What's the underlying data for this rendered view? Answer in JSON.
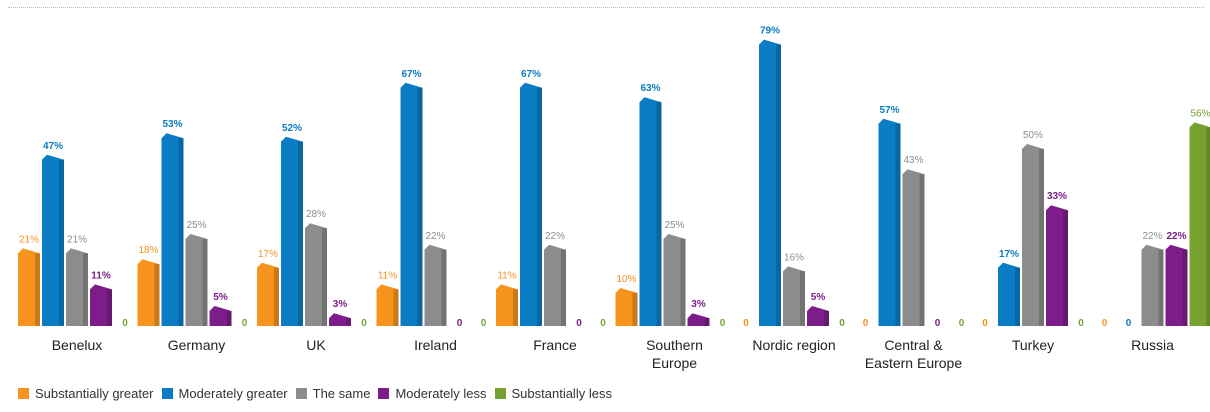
{
  "chart_data": {
    "type": "bar",
    "title": "",
    "xlabel": "",
    "ylabel": "",
    "ylim": [
      0,
      80
    ],
    "grid": false,
    "legend_position": "bottom-left",
    "categories": [
      [
        "Benelux"
      ],
      [
        "Germany"
      ],
      [
        "UK"
      ],
      [
        "Ireland"
      ],
      [
        "France"
      ],
      [
        "Southern",
        "Europe"
      ],
      [
        "Nordic region"
      ],
      [
        "Central &",
        "Eastern Europe"
      ],
      [
        "Turkey"
      ],
      [
        "Russia"
      ]
    ],
    "series": [
      {
        "name": "Substantially greater",
        "color": "#f7941d",
        "values": [
          21,
          18,
          17,
          11,
          11,
          10,
          0,
          0,
          0,
          0
        ],
        "labels": [
          "21%",
          "18%",
          "17%",
          "11%",
          "11%",
          "10%",
          "0",
          "0",
          "0",
          "0"
        ]
      },
      {
        "name": "Moderately greater",
        "color": "#0a7cc4",
        "values": [
          47,
          53,
          52,
          67,
          67,
          63,
          79,
          57,
          17,
          0
        ],
        "labels": [
          "47%",
          "53%",
          "52%",
          "67%",
          "67%",
          "63%",
          "79%",
          "57%",
          "17%",
          "0"
        ]
      },
      {
        "name": "The same",
        "color": "#8c8c8c",
        "values": [
          21,
          25,
          28,
          22,
          22,
          25,
          16,
          43,
          50,
          22
        ],
        "labels": [
          "21%",
          "25%",
          "28%",
          "22%",
          "22%",
          "25%",
          "16%",
          "43%",
          "50%",
          "22%"
        ]
      },
      {
        "name": "Moderately less",
        "color": "#7d1d8a",
        "values": [
          11,
          5,
          3,
          0,
          0,
          3,
          5,
          0,
          33,
          22
        ],
        "labels": [
          "11%",
          "5%",
          "3%",
          "0",
          "0",
          "3%",
          "5%",
          "0",
          "33%",
          "22%"
        ]
      },
      {
        "name": "Substantially less",
        "color": "#78a22f",
        "values": [
          0,
          0,
          0,
          0,
          0,
          0,
          0,
          0,
          0,
          56
        ],
        "labels": [
          "0",
          "0",
          "0",
          "0",
          "0",
          "0",
          "0",
          "0",
          "0",
          "56%"
        ]
      }
    ]
  }
}
